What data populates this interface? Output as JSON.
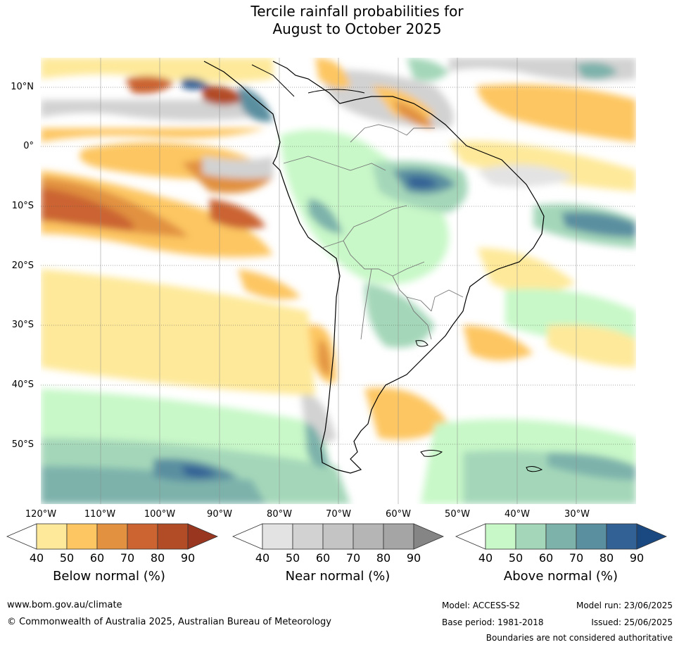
{
  "title_line1": "Tercile rainfall probabilities for",
  "title_line2": "August to October 2025",
  "lat_labels": [
    "10°N",
    "0°",
    "10°S",
    "20°S",
    "30°S",
    "40°S",
    "50°S"
  ],
  "lon_labels": [
    "120°W",
    "110°W",
    "100°W",
    "90°W",
    "80°W",
    "70°W",
    "60°W",
    "50°W",
    "40°W",
    "30°W"
  ],
  "colorbars": [
    {
      "title": "Below normal (%)",
      "ticks": [
        "40",
        "50",
        "60",
        "70",
        "80",
        "90"
      ],
      "colors": [
        "#ffffff",
        "#fee99a",
        "#fdc662",
        "#e19140",
        "#cb6430",
        "#b24c26",
        "#993620"
      ]
    },
    {
      "title": "Near normal (%)",
      "ticks": [
        "40",
        "50",
        "60",
        "70",
        "80",
        "90"
      ],
      "colors": [
        "#ffffff",
        "#e3e3e3",
        "#d2d2d2",
        "#c4c4c4",
        "#b5b5b5",
        "#a5a5a5",
        "#858585"
      ]
    },
    {
      "title": "Above normal (%)",
      "ticks": [
        "40",
        "50",
        "60",
        "70",
        "80",
        "90"
      ],
      "colors": [
        "#ffffff",
        "#c8f8c8",
        "#a4d7b9",
        "#7db2ab",
        "#5a8fa0",
        "#326195",
        "#1a4880"
      ]
    }
  ],
  "footer": {
    "url": "www.bom.gov.au/climate",
    "copyright": "© Commonwealth of Australia 2025, Australian Bureau of Meteorology",
    "model": "Model: ACCESS-S2",
    "base_period": "Base period: 1981-2018",
    "model_run": "Model run: 23/06/2025",
    "issued": "Issued: 25/06/2025",
    "disclaimer": "Boundaries are not considered authoritative"
  }
}
